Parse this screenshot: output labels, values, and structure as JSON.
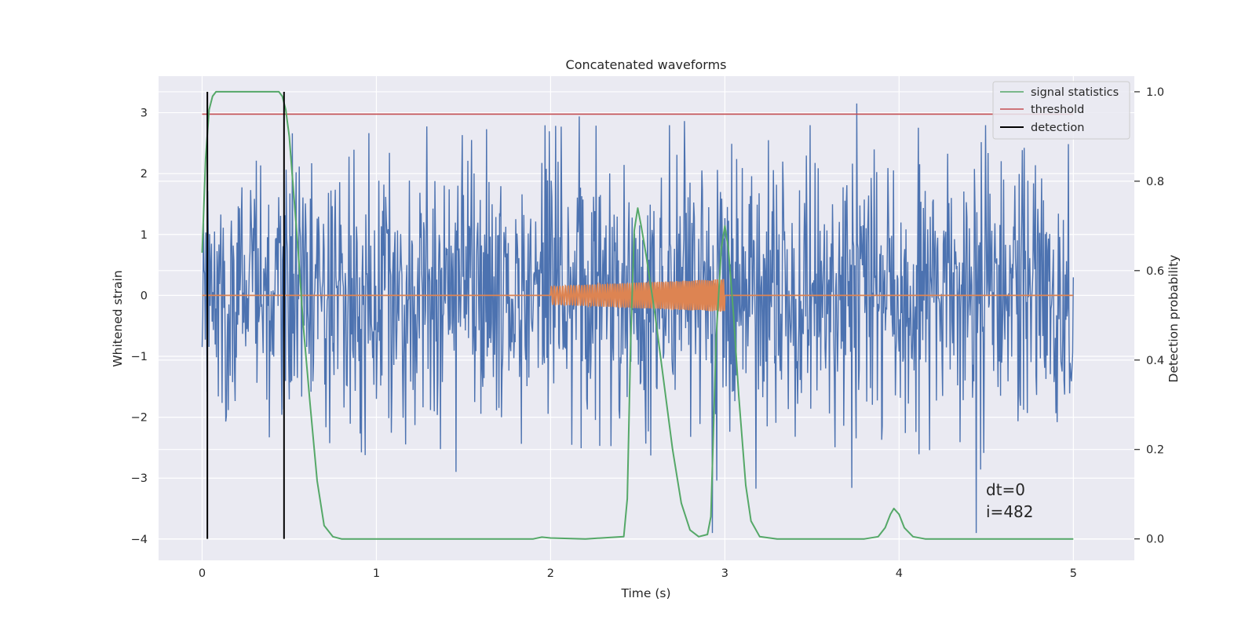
{
  "chart_data": {
    "type": "line",
    "title": "Concatenated waveforms",
    "xlabel": "Time (s)",
    "ylabel": "Whitened strain",
    "y2label": "Detection probability",
    "xlim": [
      -0.25,
      5.35
    ],
    "ylim": [
      -4.35,
      3.6
    ],
    "y2lim": [
      -0.048,
      1.035
    ],
    "xticks": [
      0,
      1,
      2,
      3,
      4,
      5
    ],
    "yticks": [
      -4,
      -3,
      -2,
      -1,
      0,
      1,
      2,
      3
    ],
    "y2ticks": [
      0.0,
      0.2,
      0.4,
      0.6,
      0.8,
      1.0
    ],
    "xtick_labels": [
      "0",
      "1",
      "2",
      "3",
      "4",
      "5"
    ],
    "ytick_labels": [
      "−4",
      "−3",
      "−2",
      "−1",
      "0",
      "1",
      "2",
      "3"
    ],
    "y2tick_labels": [
      "0.0",
      "0.2",
      "0.4",
      "0.6",
      "0.8",
      "1.0"
    ],
    "grid": true,
    "legend_position": "top-right",
    "colors": {
      "strain": "#4c72b0",
      "template": "#dd8452",
      "signal_statistics": "#55a868",
      "threshold": "#c44e52",
      "detection": "#000000",
      "background": "#eaeaf2",
      "grid": "#ffffff"
    },
    "series": [
      {
        "name": "signal statistics",
        "axis": "right",
        "x": [
          0.0,
          0.02,
          0.04,
          0.06,
          0.08,
          0.1,
          0.15,
          0.2,
          0.3,
          0.4,
          0.44,
          0.46,
          0.48,
          0.5,
          0.52,
          0.55,
          0.58,
          0.62,
          0.66,
          0.7,
          0.75,
          0.8,
          1.0,
          1.5,
          1.9,
          1.95,
          2.0,
          2.2,
          2.42,
          2.44,
          2.46,
          2.48,
          2.5,
          2.52,
          2.55,
          2.6,
          2.65,
          2.7,
          2.75,
          2.8,
          2.85,
          2.9,
          2.92,
          2.95,
          2.98,
          3.0,
          3.02,
          3.05,
          3.08,
          3.12,
          3.15,
          3.2,
          3.3,
          3.5,
          3.8,
          3.88,
          3.92,
          3.95,
          3.97,
          4.0,
          4.03,
          4.08,
          4.15,
          4.3,
          5.0
        ],
        "y": [
          0.64,
          0.85,
          0.96,
          0.99,
          1.0,
          1.0,
          1.0,
          1.0,
          1.0,
          1.0,
          1.0,
          0.99,
          0.96,
          0.9,
          0.8,
          0.65,
          0.48,
          0.3,
          0.13,
          0.03,
          0.005,
          0.0,
          0.0,
          0.0,
          0.0,
          0.004,
          0.002,
          0.0,
          0.005,
          0.09,
          0.45,
          0.69,
          0.74,
          0.7,
          0.63,
          0.5,
          0.35,
          0.2,
          0.08,
          0.02,
          0.005,
          0.01,
          0.05,
          0.45,
          0.65,
          0.7,
          0.65,
          0.5,
          0.32,
          0.12,
          0.04,
          0.005,
          0.0,
          0.0,
          0.0,
          0.005,
          0.025,
          0.055,
          0.068,
          0.055,
          0.025,
          0.005,
          0.0,
          0.0,
          0.0
        ]
      },
      {
        "name": "threshold",
        "axis": "right",
        "x": [
          0.0,
          5.0
        ],
        "y": [
          0.95,
          0.95
        ]
      },
      {
        "name": "detection",
        "axis": "right",
        "events_x": [
          0.03,
          0.47
        ],
        "y_range": [
          0.0,
          1.0
        ]
      }
    ],
    "annotation": "dt=0\ni=482",
    "annotation_lines": [
      "dt=0",
      "i=482"
    ],
    "annotation_position": [
      4.5,
      -3.2
    ],
    "legend_items": [
      "signal statistics",
      "threshold",
      "detection"
    ]
  }
}
